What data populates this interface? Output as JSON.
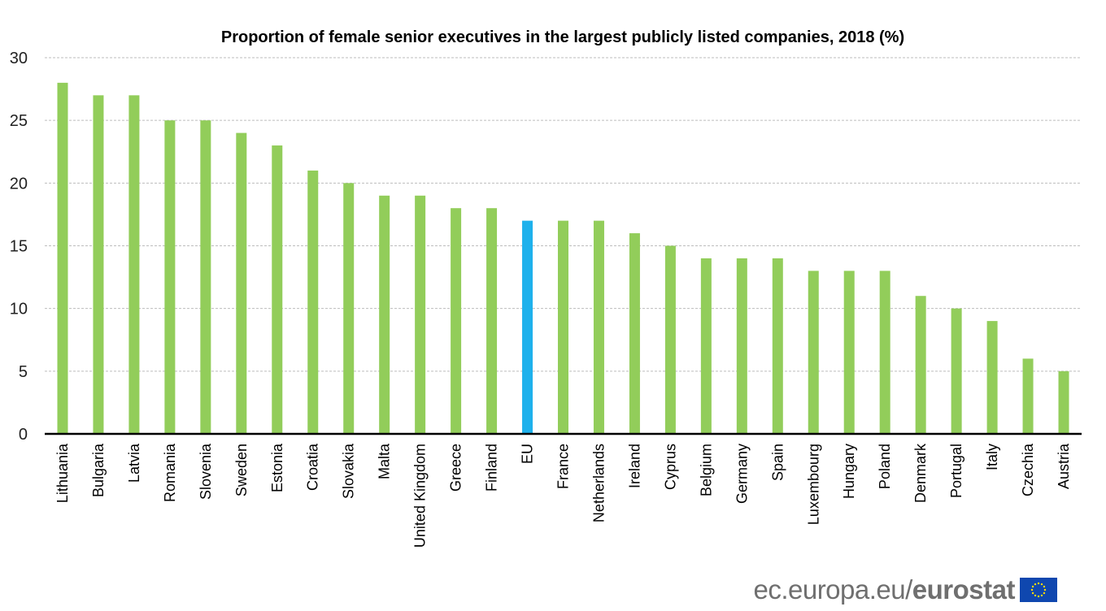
{
  "chart_data": {
    "type": "bar",
    "title": "Proportion of female senior executives in the largest publicly listed companies, 2018 (%)",
    "xlabel": "",
    "ylabel": "",
    "ylim": [
      0,
      30
    ],
    "yticks": [
      0,
      5,
      10,
      15,
      20,
      25,
      30
    ],
    "grid": true,
    "legend": "none",
    "categories": [
      "Lithuania",
      "Bulgaria",
      "Latvia",
      "Romania",
      "Slovenia",
      "Sweden",
      "Estonia",
      "Croatia",
      "Slovakia",
      "Malta",
      "United Kingdom",
      "Greece",
      "Finland",
      "EU",
      "France",
      "Netherlands",
      "Ireland",
      "Cyprus",
      "Belgium",
      "Germany",
      "Spain",
      "Luxembourg",
      "Hungary",
      "Poland",
      "Denmark",
      "Portugal",
      "Italy",
      "Czechia",
      "Austria"
    ],
    "values": [
      28,
      27,
      27,
      25,
      25,
      24,
      23,
      21,
      20,
      19,
      19,
      18,
      18,
      17,
      17,
      17,
      16,
      15,
      14,
      14,
      14,
      13,
      13,
      13,
      11,
      10,
      9,
      6,
      5
    ],
    "highlight_category": "EU",
    "colors": {
      "default": "#92cd5a",
      "highlight": "#1eb1ec"
    }
  },
  "footer": {
    "source_prefix": "ec.europa.eu/",
    "source_bold": "eurostat",
    "logo": "eu-flag-icon"
  }
}
